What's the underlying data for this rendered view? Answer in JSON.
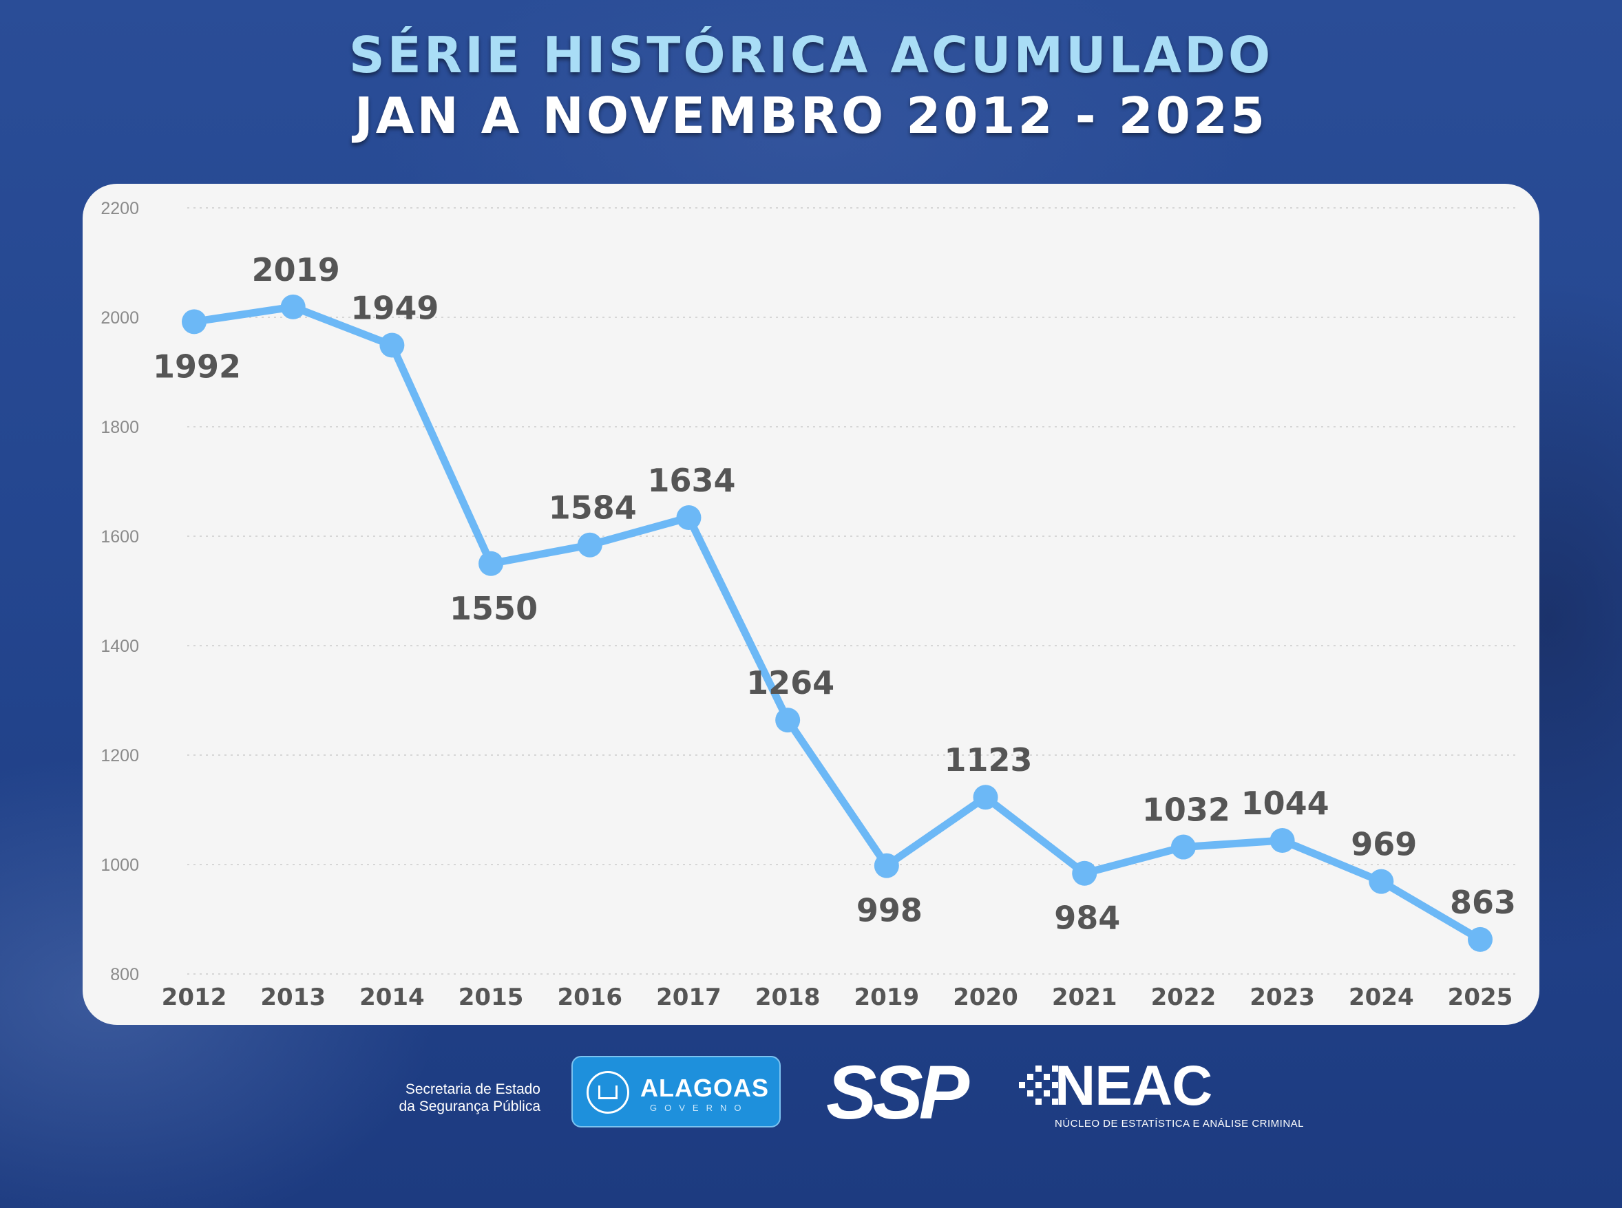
{
  "title": {
    "line1": "SÉRIE HISTÓRICA ACUMULADO",
    "line2": "JAN A NOVEMBRO 2012 - 2025"
  },
  "chart_data": {
    "type": "line",
    "title": "SÉRIE HISTÓRICA ACUMULADO JAN A NOVEMBRO 2012 - 2025",
    "xlabel": "",
    "ylabel": "",
    "categories": [
      "2012",
      "2013",
      "2014",
      "2015",
      "2016",
      "2017",
      "2018",
      "2019",
      "2020",
      "2021",
      "2022",
      "2023",
      "2024",
      "2025"
    ],
    "series": [
      {
        "values": [
          1992,
          2019,
          1949,
          1550,
          1584,
          1634,
          1264,
          998,
          1123,
          984,
          1032,
          1044,
          969,
          863
        ]
      }
    ],
    "label_positions": [
      "below",
      "above",
      "above",
      "below",
      "above",
      "above",
      "above",
      "below",
      "above",
      "below",
      "above",
      "above",
      "above",
      "above"
    ],
    "ylim": [
      800,
      2200
    ],
    "yticks": [
      800,
      1000,
      1200,
      1400,
      1600,
      1800,
      2000,
      2200
    ],
    "grid": true,
    "line_color": "#6cb8f6"
  },
  "footer": {
    "secretaria_line1": "Secretaria de Estado",
    "secretaria_line2": "da Segurança Pública",
    "alagoas_name": "ALAGOAS",
    "alagoas_sub": "GOVERNO",
    "ssp": "SSP",
    "neac_name": "NEAC",
    "neac_sub": "NÚCLEO DE ESTATÍSTICA E ANÁLISE CRIMINAL"
  }
}
